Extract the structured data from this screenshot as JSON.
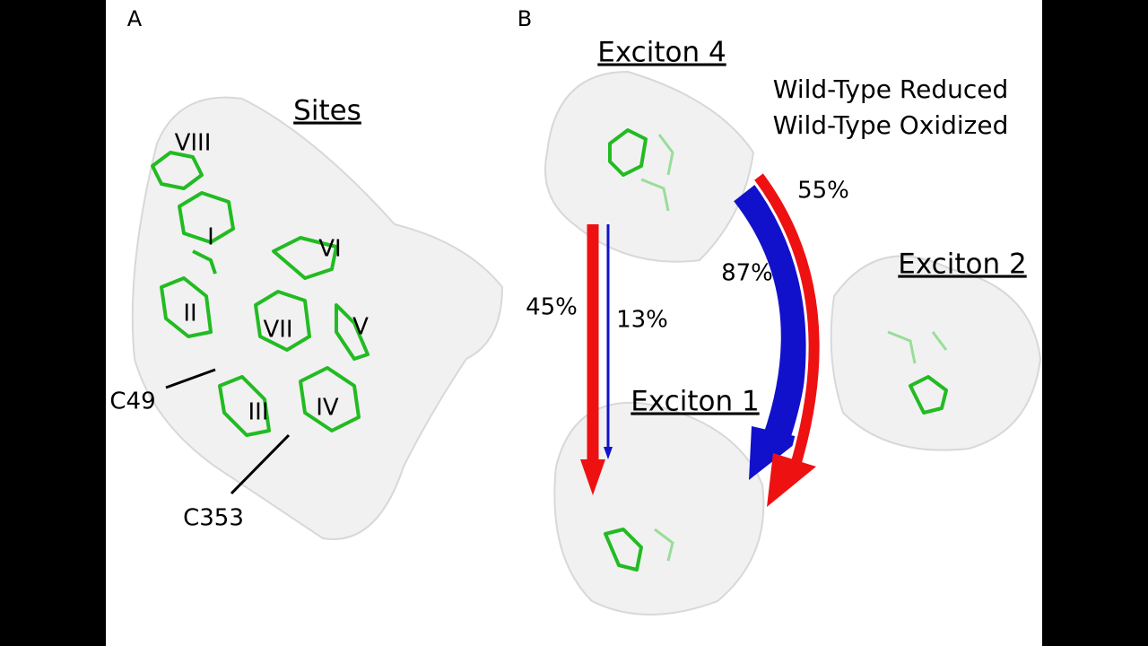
{
  "panel_a": {
    "label": "A",
    "title": "Sites",
    "sites": [
      "VIII",
      "I",
      "VI",
      "II",
      "VII",
      "V",
      "III",
      "IV"
    ],
    "residues": [
      "C49",
      "C353"
    ]
  },
  "panel_b": {
    "label": "B",
    "excitons": [
      "Exciton 4",
      "Exciton 2",
      "Exciton 1"
    ],
    "legend": [
      {
        "name": "Wild-Type Reduced",
        "color": "#ee1111"
      },
      {
        "name": "Wild-Type Oxidized",
        "color": "#1111cc"
      }
    ],
    "transfers": [
      {
        "label": "55%",
        "series": 0
      },
      {
        "label": "87%",
        "series": 1
      },
      {
        "label": "45%",
        "series": 0
      },
      {
        "label": "13%",
        "series": 1
      }
    ]
  }
}
